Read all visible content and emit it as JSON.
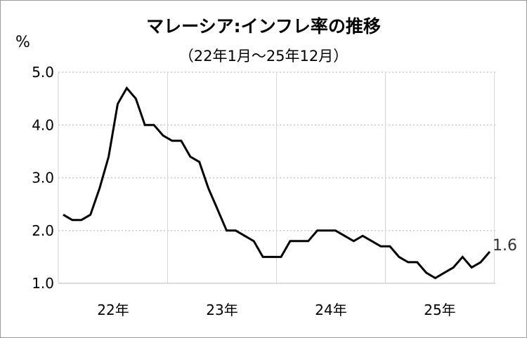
{
  "chart_data": {
    "type": "line",
    "title": "マレーシア:インフレ率の推移",
    "subtitle": "（22年1月～25年12月）",
    "ylabel": "%",
    "ylim": [
      1.0,
      5.0
    ],
    "yticks": [
      "5.0",
      "4.0",
      "3.0",
      "2.0",
      "1.0"
    ],
    "ytick_values": [
      5.0,
      4.0,
      3.0,
      2.0,
      1.0
    ],
    "xtick_labels": [
      "22年",
      "23年",
      "24年",
      "25年"
    ],
    "x_start": "2022-01",
    "x_end": "2025-12",
    "grid": true,
    "line_color": "#000000",
    "end_label": "1.6",
    "series": [
      {
        "values": [
          2.3,
          2.2,
          2.2,
          2.3,
          2.8,
          3.4,
          4.4,
          4.7,
          4.5,
          4.0,
          4.0,
          3.8,
          3.7,
          3.7,
          3.4,
          3.3,
          2.8,
          2.4,
          2.0,
          2.0,
          1.9,
          1.8,
          1.5,
          1.5,
          1.5,
          1.8,
          1.8,
          1.8,
          2.0,
          2.0,
          2.0,
          1.9,
          1.8,
          1.9,
          1.8,
          1.7,
          1.7,
          1.5,
          1.4,
          1.4,
          1.2,
          1.1,
          1.2,
          1.3,
          1.5,
          1.3,
          1.4,
          1.6
        ]
      }
    ]
  }
}
